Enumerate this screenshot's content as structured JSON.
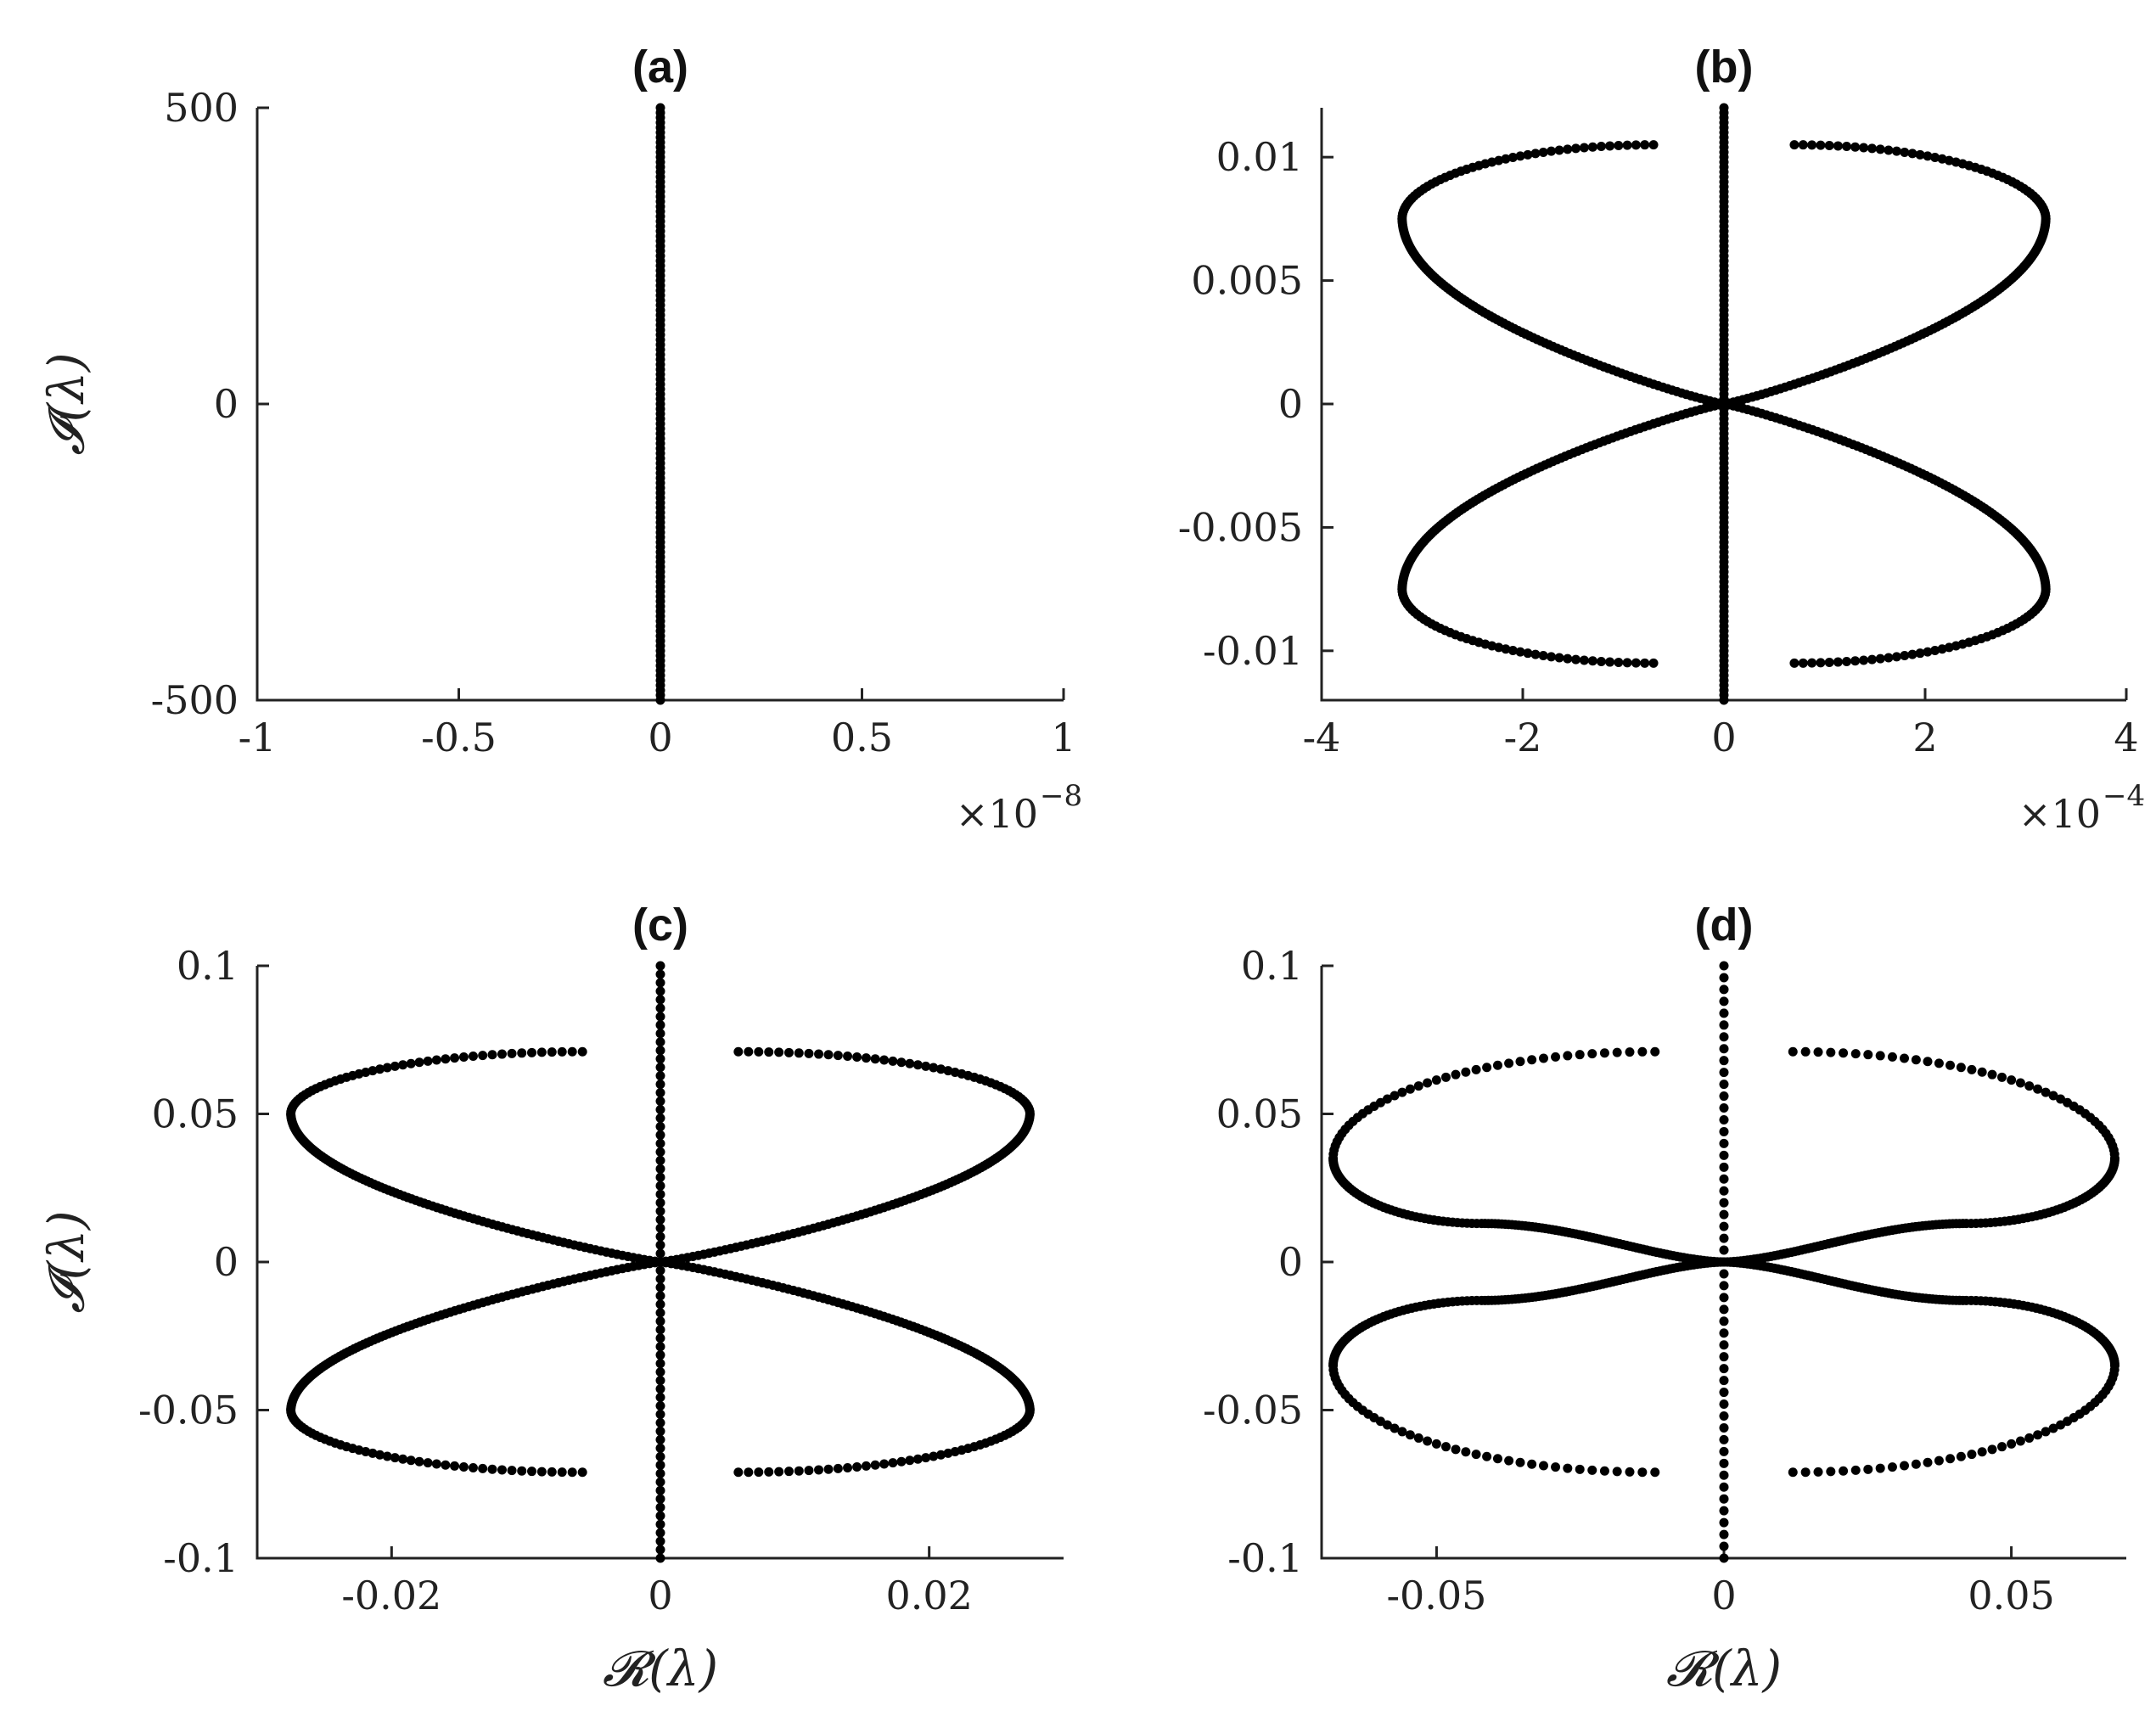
{
  "chart_data": [
    {
      "type": "scatter",
      "title": "(a)",
      "xlabel": "",
      "ylabel": "𝓘(λ)",
      "xlim": [
        -1,
        1
      ],
      "ylim": [
        -500,
        500
      ],
      "x_multiplier": "×10",
      "x_multiplier_exp": "−8",
      "xticks": [
        -1,
        -0.5,
        0,
        0.5,
        1
      ],
      "xtick_labels": [
        "-1",
        "-0.5",
        "0",
        "0.5",
        "1"
      ],
      "yticks": [
        -500,
        0,
        500
      ],
      "ytick_labels": [
        "-500",
        "0",
        "500"
      ],
      "series": [
        {
          "kind": "vertical_dense",
          "x": 0,
          "y_range": [
            -500,
            500
          ],
          "count": 120
        }
      ]
    },
    {
      "type": "scatter",
      "title": "(b)",
      "xlabel": "",
      "ylabel": "",
      "xlim": [
        -4,
        4
      ],
      "ylim": [
        -0.012,
        0.012
      ],
      "x_multiplier": "×10",
      "x_multiplier_exp": "−4",
      "xticks": [
        -4,
        -2,
        0,
        2,
        4
      ],
      "xtick_labels": [
        "-4",
        "-2",
        "0",
        "2",
        "4"
      ],
      "yticks": [
        -0.01,
        -0.005,
        0,
        0.005,
        0.01
      ],
      "ytick_labels": [
        "-0.01",
        "-0.005",
        "0",
        "0.005",
        "0.01"
      ],
      "series": [
        {
          "kind": "vertical_dense",
          "x": 0,
          "y_range": [
            -0.012,
            0.012
          ],
          "count": 120
        },
        {
          "kind": "figure_eight",
          "xmax": 3.2,
          "y_turn": 0.0075,
          "y_top": 0.0105,
          "x_top": 0.7,
          "shape": 0,
          "count": 150
        }
      ]
    },
    {
      "type": "scatter",
      "title": "(c)",
      "xlabel": "𝓡(λ)",
      "ylabel": "𝓘(λ)",
      "xlim": [
        -0.03,
        0.03
      ],
      "ylim": [
        -0.1,
        0.1
      ],
      "xticks": [
        -0.02,
        0,
        0.02
      ],
      "xtick_labels": [
        "-0.02",
        "0",
        "0.02"
      ],
      "yticks": [
        -0.1,
        -0.05,
        0,
        0.05,
        0.1
      ],
      "ytick_labels": [
        "-0.1",
        "-0.05",
        "0",
        "0.05",
        "0.1"
      ],
      "series": [
        {
          "kind": "vertical_dense",
          "x": 0,
          "y_range": [
            -0.1,
            0.1
          ],
          "count": 70
        },
        {
          "kind": "figure_eight",
          "xmax": 0.0275,
          "y_turn": 0.05,
          "y_top": 0.071,
          "x_top": 0.0058,
          "shape": 0,
          "count": 150
        }
      ]
    },
    {
      "type": "scatter",
      "title": "(d)",
      "xlabel": "𝓡(λ)",
      "ylabel": "",
      "xlim": [
        -0.07,
        0.07
      ],
      "ylim": [
        -0.1,
        0.1
      ],
      "xticks": [
        -0.05,
        0,
        0.05
      ],
      "xtick_labels": [
        "-0.05",
        "0",
        "0.05"
      ],
      "yticks": [
        -0.1,
        -0.05,
        0,
        0.05,
        0.1
      ],
      "ytick_labels": [
        "-0.1",
        "-0.05",
        "0",
        "0.05",
        "0.1"
      ],
      "series": [
        {
          "kind": "vertical_dense",
          "x": 0,
          "y_range": [
            -0.1,
            0.1
          ],
          "count": 50
        },
        {
          "kind": "figure_eight",
          "xmax": 0.068,
          "y_turn": 0.035,
          "y_top": 0.071,
          "x_top": 0.012,
          "shape": 1,
          "y_mid": 0.013,
          "count": 160
        }
      ]
    }
  ]
}
